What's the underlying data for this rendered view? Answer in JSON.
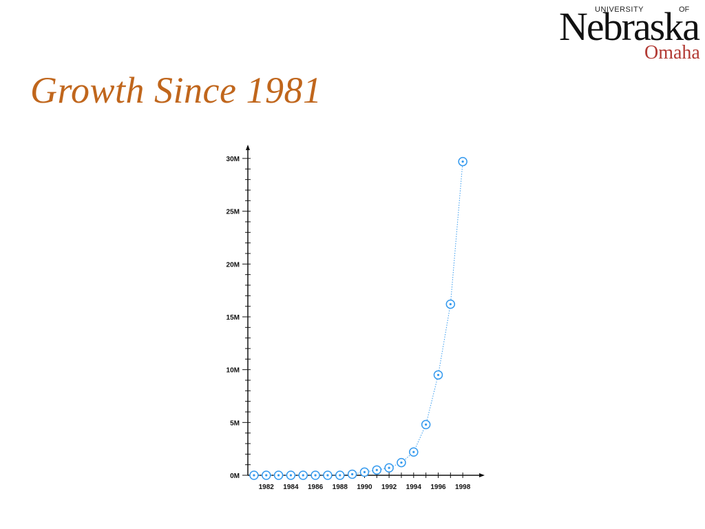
{
  "slide": {
    "title": "Growth Since 1981"
  },
  "logo": {
    "university": "UNIVERSITY",
    "of": "OF",
    "nebraska": "Nebraska",
    "omaha": "Omaha",
    "omaha_color": "#b23a34"
  },
  "chart_data": {
    "type": "scatter",
    "title": "",
    "xlabel": "",
    "ylabel": "",
    "x": [
      1981,
      1982,
      1983,
      1984,
      1985,
      1986,
      1987,
      1988,
      1989,
      1990,
      1991,
      1992,
      1993,
      1994,
      1995,
      1996,
      1997,
      1998
    ],
    "y": [
      0,
      0,
      0,
      0,
      0,
      0,
      0,
      0,
      0.1,
      0.3,
      0.5,
      0.7,
      1.2,
      2.2,
      4.8,
      9.5,
      16.2,
      29.7
    ],
    "y_unit": "M",
    "xlim": [
      1980.5,
      1999
    ],
    "ylim": [
      0,
      30
    ],
    "x_tick_labels": [
      "1982",
      "1984",
      "1986",
      "1988",
      "1990",
      "1992",
      "1994",
      "1996",
      "1998"
    ],
    "y_tick_labels": [
      "0M",
      "5M",
      "10M",
      "15M",
      "20M",
      "25M",
      "30M"
    ],
    "grid": false,
    "legend": "none",
    "marker": "circle-with-dot",
    "line_style": "dotted",
    "series_color": "#3399ee",
    "title_color": "#c0661c"
  }
}
